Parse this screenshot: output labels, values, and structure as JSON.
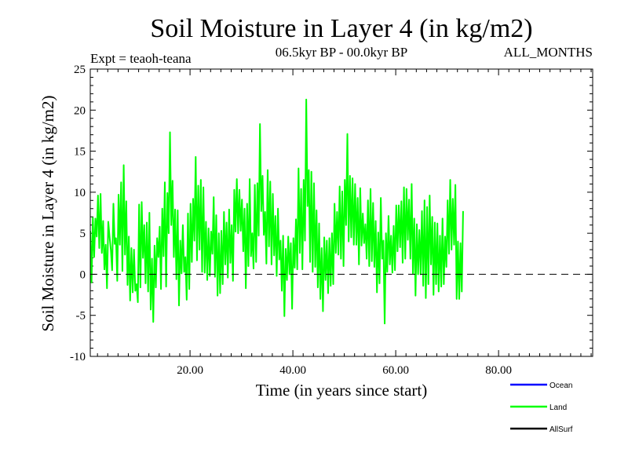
{
  "header": {
    "title": "Soil Moisture in Layer 4 (in kg/m2)",
    "expt": "Expt = teaoh-teana",
    "period": "06.5kyr BP - 00.0kyr BP",
    "months": "ALL_MONTHS"
  },
  "chart_data": {
    "type": "line",
    "title": "Soil Moisture in Layer 4 (in kg/m2)",
    "xlabel": "Time (in years since start)",
    "ylabel": "Soil Moisture in Layer 4 (in kg/m2)",
    "xlim": [
      0.6,
      98.3
    ],
    "ylim": [
      -10,
      25
    ],
    "x_ticks": [
      20,
      40,
      60,
      80
    ],
    "x_tick_labels": [
      "20.00",
      "40.00",
      "60.00",
      "80.00"
    ],
    "y_ticks": [
      -10,
      -5,
      0,
      5,
      10,
      15,
      20,
      25
    ],
    "y_tick_labels": [
      "-10",
      "-5",
      "0",
      "5",
      "10",
      "15",
      "20",
      "25"
    ],
    "reference_line": {
      "y": 0,
      "style": "dashed"
    },
    "legend": {
      "placement": "bottom-right",
      "entries": [
        {
          "name": "Ocean",
          "color": "#0000ff"
        },
        {
          "name": "Land",
          "color": "#00ff00"
        },
        {
          "name": "AllSurf",
          "color": "#000000"
        }
      ]
    },
    "series": [
      {
        "name": "Land",
        "color": "#00ff00",
        "x_start": 0.6,
        "x_step": 0.25,
        "values": [
          5.3,
          -1.0,
          6.9,
          2.1,
          6.8,
          4.6,
          9.6,
          3.2,
          9.8,
          2.6,
          6.5,
          0.6,
          3.6,
          -1.7,
          6.4,
          4.6,
          3.0,
          0.5,
          8.6,
          3.7,
          4.4,
          -0.8,
          9.7,
          3.6,
          11.2,
          0.4,
          13.3,
          2.4,
          8.9,
          -1.3,
          4.6,
          -3.2,
          3.2,
          -2.2,
          3.0,
          -2.0,
          -1.2,
          -3.4,
          8.5,
          -1.6,
          8.8,
          2.0,
          6.0,
          -1.1,
          6.3,
          -2.1,
          7.5,
          -4.3,
          1.9,
          -5.8,
          3.5,
          -1.6,
          4.4,
          2.1,
          5.8,
          -1.8,
          8.0,
          2.2,
          11.2,
          -1.5,
          9.9,
          5.0,
          17.3,
          6.0,
          11.4,
          2.1,
          7.9,
          -0.6,
          7.8,
          -3.8,
          4.1,
          0.1,
          6.0,
          0.3,
          2.1,
          -3.1,
          7.4,
          -1.8,
          8.6,
          1.5,
          9.2,
          4.1,
          14.3,
          1.7,
          10.8,
          3.0,
          11.5,
          0.3,
          10.6,
          0.2,
          6.4,
          -0.7,
          5.6,
          -0.2,
          5.2,
          2.5,
          9.4,
          -0.3,
          7.2,
          -2.6,
          5.0,
          -2.3,
          5.3,
          -1.2,
          7.6,
          1.2,
          6.3,
          -0.4,
          7.9,
          1.4,
          6.0,
          -0.8,
          10.3,
          5.2,
          11.6,
          5.0,
          10.3,
          5.3,
          9.1,
          2.8,
          8.0,
          -1.7,
          8.6,
          1.0,
          11.6,
          2.2,
          5.0,
          0.7,
          10.9,
          1.5,
          11.1,
          4.7,
          18.3,
          7.7,
          12.0,
          4.8,
          7.6,
          1.3,
          12.7,
          3.4,
          11.3,
          1.2,
          9.8,
          2.3,
          7.1,
          -0.2,
          8.0,
          1.8,
          4.1,
          -2.0,
          4.7,
          -5.1,
          3.1,
          -0.7,
          4.6,
          0.0,
          3.8,
          -4.2,
          4.4,
          0.8,
          6.7,
          0.6,
          12.9,
          2.6,
          10.4,
          0.6,
          11.5,
          4.1,
          21.3,
          8.3,
          12.7,
          1.5,
          12.5,
          0.3,
          11.1,
          0.9,
          7.8,
          -1.6,
          6.2,
          -3.0,
          3.2,
          -4.5,
          4.5,
          -0.7,
          4.1,
          -2.3,
          4.4,
          -1.4,
          5.0,
          -1.2,
          8.6,
          2.6,
          7.6,
          2.4,
          10.7,
          1.9,
          10.1,
          1.0,
          11.5,
          6.0,
          17.1,
          4.0,
          12.0,
          4.5,
          11.7,
          3.6,
          11.0,
          3.6,
          9.3,
          1.2,
          10.5,
          3.5,
          7.4,
          3.8,
          6.1,
          1.9,
          9.0,
          1.0,
          10.4,
          1.6,
          8.7,
          0.9,
          6.5,
          -2.2,
          5.1,
          -1.1,
          9.3,
          1.9,
          4.1,
          -6.0,
          5.0,
          0.3,
          7.1,
          1.2,
          4.7,
          0.2,
          5.9,
          0.5,
          8.4,
          2.8,
          8.4,
          3.3,
          8.9,
          1.4,
          10.6,
          1.9,
          10.4,
          4.2,
          9.1,
          1.9,
          11.0,
          0.1,
          6.8,
          -2.6,
          6.1,
          0.0,
          5.4,
          0.0,
          7.7,
          -1.4,
          9.0,
          -2.9,
          8.2,
          -1.2,
          9.6,
          1.2,
          7.0,
          -2.5,
          6.3,
          -1.2,
          6.2,
          -2.1,
          4.7,
          -1.5,
          6.8,
          -1.2,
          4.6,
          0.9,
          9.0,
          2.5,
          11.5,
          3.0,
          9.2,
          3.6,
          10.9,
          -3.0,
          4.0,
          -3.0,
          3.8,
          -2.1,
          7.7
        ]
      }
    ]
  }
}
